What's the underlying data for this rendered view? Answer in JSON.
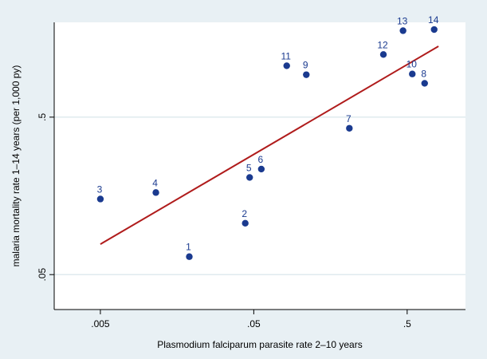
{
  "chart_data": {
    "type": "scatter",
    "xlabel": "Plasmodium falciparum parasite rate 2–10 years",
    "ylabel": "malaria mortality rate 1–14 years (per 1,000 py)",
    "x_scale": "log",
    "y_scale": "log",
    "xlim": [
      0.0025,
      1.2
    ],
    "ylim": [
      0.03,
      2.0
    ],
    "x_ticks": [
      0.005,
      0.05,
      0.5
    ],
    "x_tick_labels": [
      ".005",
      ".05",
      ".5"
    ],
    "y_ticks": [
      0.05,
      0.5
    ],
    "y_tick_labels": [
      ".05",
      ".5"
    ],
    "grid": true,
    "colors": {
      "background": "#e8f0f4",
      "plot_area": "#ffffff",
      "grid": "#dce8ed",
      "points": "#1a3a8f",
      "fit_line": "#b01c1c",
      "label_text": "#1a3a8f"
    },
    "points": [
      {
        "label": "1",
        "x": 0.019,
        "y": 0.065
      },
      {
        "label": "2",
        "x": 0.044,
        "y": 0.106
      },
      {
        "label": "3",
        "x": 0.005,
        "y": 0.151
      },
      {
        "label": "4",
        "x": 0.0115,
        "y": 0.166
      },
      {
        "label": "5",
        "x": 0.047,
        "y": 0.207
      },
      {
        "label": "6",
        "x": 0.056,
        "y": 0.234
      },
      {
        "label": "7",
        "x": 0.21,
        "y": 0.425
      },
      {
        "label": "8",
        "x": 0.65,
        "y": 0.82
      },
      {
        "label": "9",
        "x": 0.11,
        "y": 0.93
      },
      {
        "label": "10",
        "x": 0.54,
        "y": 0.94
      },
      {
        "label": "11",
        "x": 0.082,
        "y": 1.06
      },
      {
        "label": "12",
        "x": 0.35,
        "y": 1.25
      },
      {
        "label": "13",
        "x": 0.47,
        "y": 1.77
      },
      {
        "label": "14",
        "x": 0.75,
        "y": 1.8
      }
    ],
    "fit_line": {
      "x": [
        0.005,
        0.8
      ],
      "y": [
        0.078,
        1.41
      ]
    }
  }
}
